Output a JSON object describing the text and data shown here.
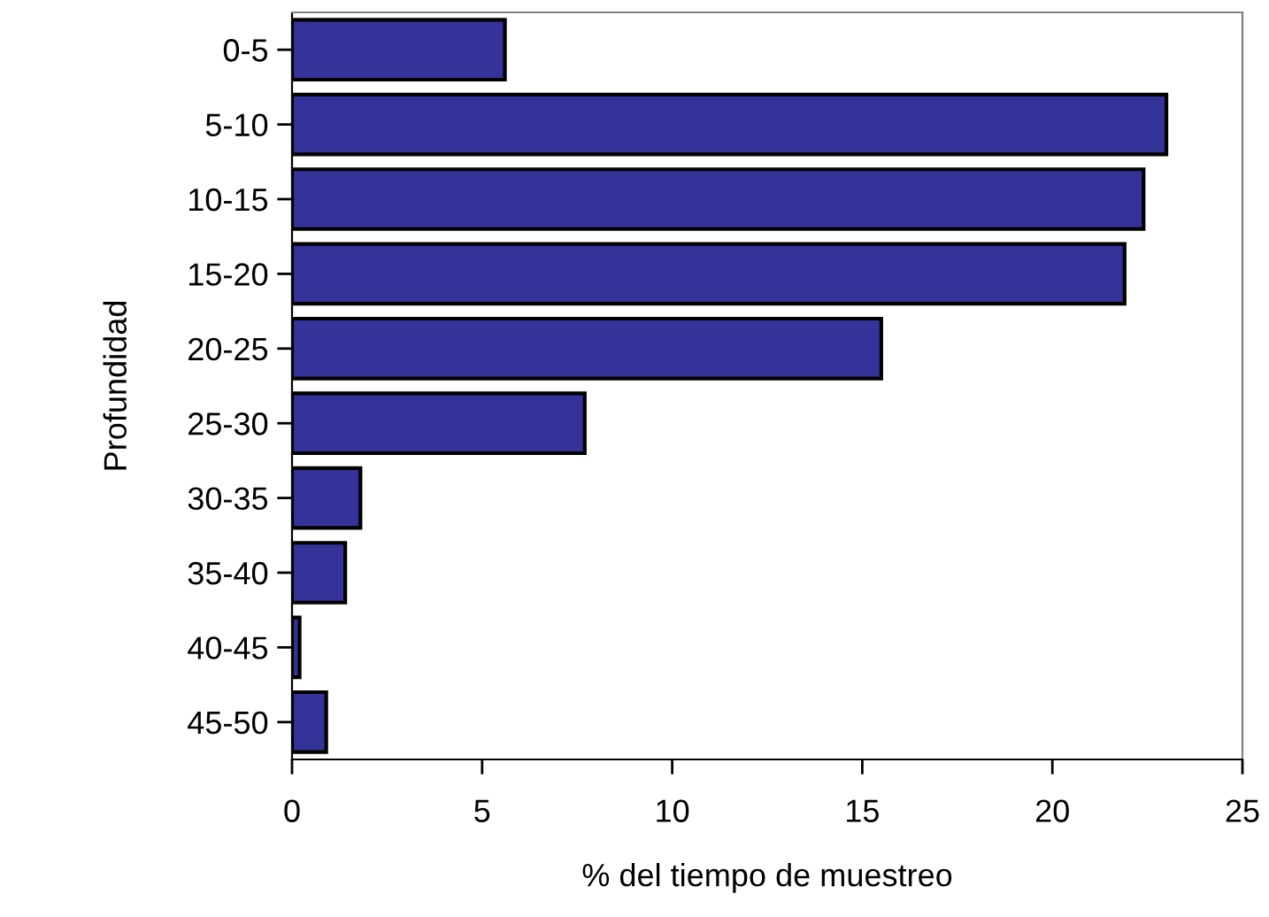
{
  "chart_data": {
    "type": "bar",
    "orientation": "horizontal",
    "xlabel": "% del tiempo de muestreo",
    "ylabel": "Profundidad",
    "categories": [
      "0-5",
      "5-10",
      "10-15",
      "15-20",
      "20-25",
      "25-30",
      "30-35",
      "35-40",
      "40-45",
      "45-50"
    ],
    "values": [
      5.6,
      23.0,
      22.4,
      21.9,
      15.5,
      7.7,
      1.8,
      1.4,
      0.2,
      0.9
    ],
    "color": "#333399",
    "xlim": [
      0,
      25
    ],
    "xticks": [
      0,
      5,
      10,
      15,
      20,
      25
    ],
    "grid": false,
    "legend": false
  }
}
